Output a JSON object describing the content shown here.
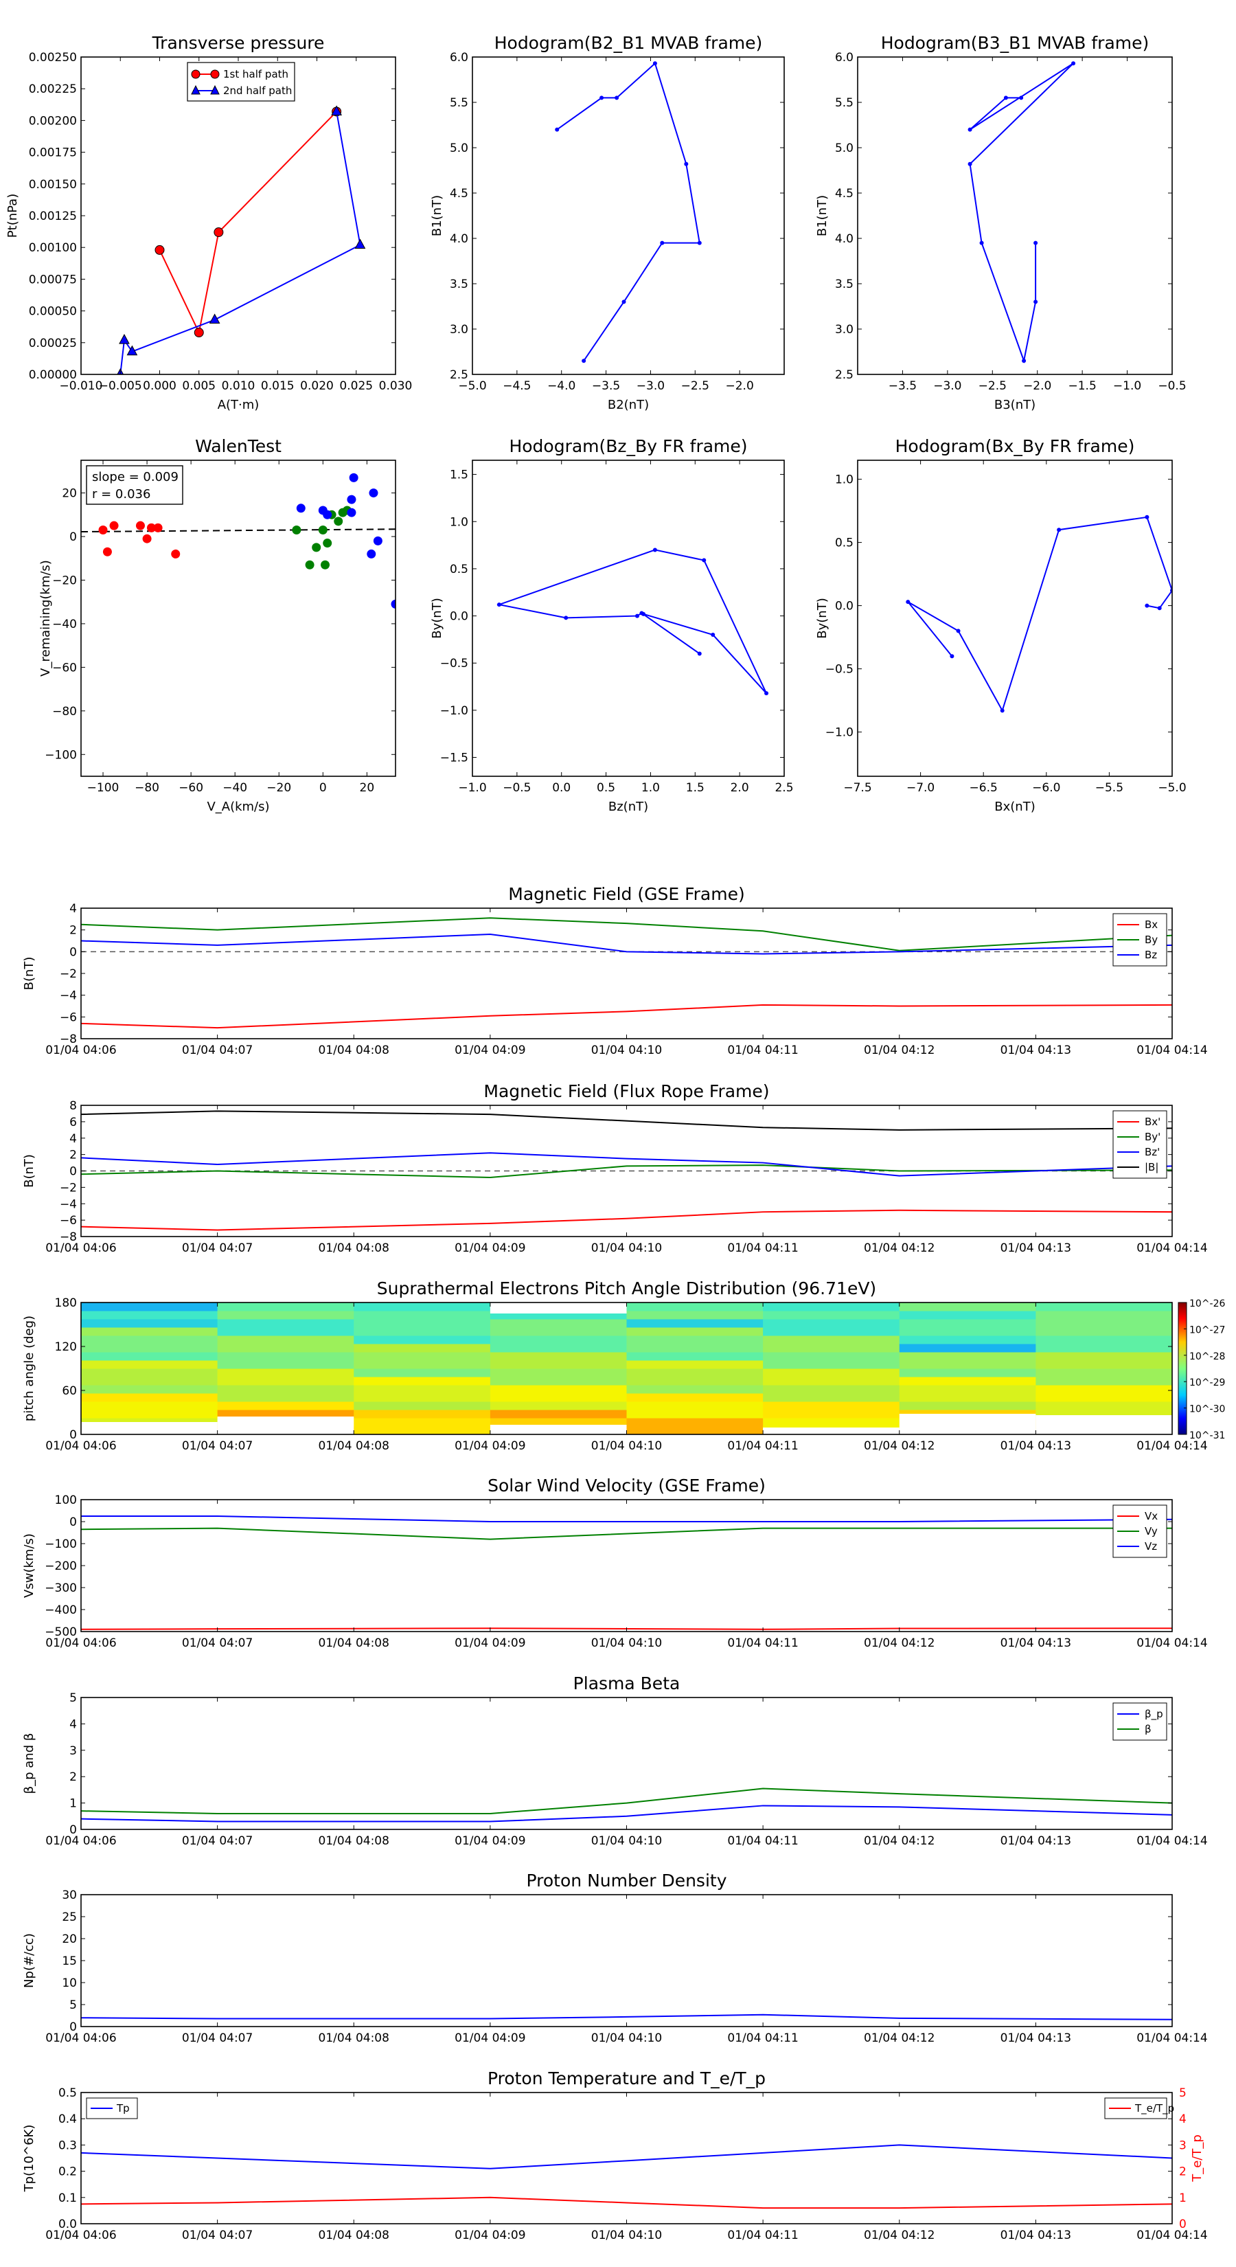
{
  "chart_data": [
    {
      "type": "line",
      "title": "Transverse pressure",
      "xlabel": "A(T·m)",
      "ylabel": "Pt(nPa)",
      "xlim": [
        -0.01,
        0.03
      ],
      "ylim": [
        0,
        0.0025
      ],
      "xticks": [
        "−0.010",
        "−0.005",
        "0.000",
        "0.005",
        "0.010",
        "0.015",
        "0.020",
        "0.025",
        "0.030"
      ],
      "yticks": [
        "0.00000",
        "0.00025",
        "0.00050",
        "0.00075",
        "0.00100",
        "0.00125",
        "0.00150",
        "0.00175",
        "0.00200",
        "0.00225",
        "0.00250"
      ],
      "legend": "top-center",
      "series": [
        {
          "name": "1st half path",
          "color": "#ff0000",
          "marker": "circle",
          "x": [
            0.0,
            0.005,
            0.0075,
            0.0225
          ],
          "y": [
            0.00098,
            0.00033,
            0.00112,
            0.00207
          ]
        },
        {
          "name": "2nd half path",
          "color": "#0000ff",
          "marker": "triangle",
          "x": [
            0.0225,
            0.0255,
            0.007,
            -0.0035,
            -0.0045,
            -0.005
          ],
          "y": [
            0.00207,
            0.00102,
            0.00043,
            0.00018,
            0.00027,
            0.0
          ]
        }
      ]
    },
    {
      "type": "line",
      "title": "Hodogram(B2_B1 MVAB frame)",
      "xlabel": "B2(nT)",
      "ylabel": "B1(nT)",
      "xlim": [
        -5.0,
        -1.5
      ],
      "ylim": [
        2.5,
        6.0
      ],
      "xticks": [
        "−5.0",
        "−4.5",
        "−4.0",
        "−3.5",
        "−3.0",
        "−2.5",
        "−2.0"
      ],
      "yticks": [
        "2.5",
        "3.0",
        "3.5",
        "4.0",
        "4.5",
        "5.0",
        "5.5",
        "6.0"
      ],
      "series": [
        {
          "color": "#0000ff",
          "x": [
            -4.05,
            -3.55,
            -3.38,
            -2.95,
            -2.6,
            -2.45,
            -2.87,
            -3.3,
            -3.75
          ],
          "y": [
            5.2,
            5.55,
            5.55,
            5.93,
            4.82,
            3.95,
            3.95,
            3.3,
            2.65
          ]
        }
      ]
    },
    {
      "type": "line",
      "title": "Hodogram(B3_B1 MVAB frame)",
      "xlabel": "B3(nT)",
      "ylabel": "B1(nT)",
      "xlim": [
        -4.0,
        -0.5
      ],
      "ylim": [
        2.5,
        6.0
      ],
      "xticks": [
        "−3.5",
        "−3.0",
        "−2.5",
        "−2.0",
        "−1.5",
        "−1.0",
        "−0.5"
      ],
      "yticks": [
        "2.5",
        "3.0",
        "3.5",
        "4.0",
        "4.5",
        "5.0",
        "5.5",
        "6.0"
      ],
      "series": [
        {
          "color": "#0000ff",
          "x": [
            -2.18,
            -2.35,
            -2.75,
            -1.6,
            -2.75,
            -2.62,
            -2.15,
            -2.02,
            -2.02
          ],
          "y": [
            5.55,
            5.55,
            5.2,
            5.93,
            4.82,
            3.95,
            2.65,
            3.3,
            3.95
          ]
        }
      ]
    },
    {
      "type": "scatter",
      "title": "WalenTest",
      "xlabel": "V_A(km/s)",
      "ylabel": "V_remaining(km/s)",
      "xlim": [
        -110,
        33
      ],
      "ylim": [
        -110,
        35
      ],
      "xticks": [
        "−100",
        "−80",
        "−60",
        "−40",
        "−20",
        "0",
        "20"
      ],
      "yticks": [
        "−100",
        "−80",
        "−60",
        "−40",
        "−20",
        "0",
        "20"
      ],
      "annotations": [
        "slope = 0.009",
        "r = 0.036"
      ],
      "fit_line": {
        "x": [
          -110,
          33
        ],
        "y": [
          2.2,
          3.4
        ]
      },
      "series": [
        {
          "color": "#ff0000",
          "x": [
            -100,
            -98,
            -95,
            -83,
            -80,
            -78,
            -75,
            -67
          ],
          "y": [
            3,
            -7,
            5,
            5,
            -1,
            4,
            4,
            -8
          ]
        },
        {
          "color": "#008000",
          "x": [
            -12,
            -6,
            -3,
            0,
            1,
            2,
            4,
            7,
            9,
            11
          ],
          "y": [
            3,
            -13,
            -5,
            3,
            -13,
            -3,
            10,
            7,
            11,
            12
          ]
        },
        {
          "color": "#0000ff",
          "x": [
            -10,
            0,
            2,
            13,
            13,
            14,
            22,
            23,
            25,
            33
          ],
          "y": [
            13,
            12,
            10,
            11,
            17,
            27,
            -8,
            20,
            -2,
            -31
          ]
        }
      ]
    },
    {
      "type": "line",
      "title": "Hodogram(Bz_By FR frame)",
      "xlabel": "Bz(nT)",
      "ylabel": "By(nT)",
      "xlim": [
        -1.0,
        2.5
      ],
      "ylim": [
        -1.7,
        1.65
      ],
      "xticks": [
        "−1.0",
        "−0.5",
        "0.0",
        "0.5",
        "1.0",
        "1.5",
        "2.0",
        "2.5"
      ],
      "yticks": [
        "−1.5",
        "−1.0",
        "−0.5",
        "0.0",
        "0.5",
        "1.0",
        "1.5"
      ],
      "series": [
        {
          "color": "#0000ff",
          "x": [
            1.55,
            0.9,
            0.85,
            0.05,
            -0.7,
            1.05,
            1.6,
            2.3,
            1.7,
            0.92
          ],
          "y": [
            -0.4,
            0.03,
            0.0,
            -0.02,
            0.12,
            0.7,
            0.59,
            -0.82,
            -0.2,
            0.02
          ]
        }
      ]
    },
    {
      "type": "line",
      "title": "Hodogram(Bx_By FR frame)",
      "xlabel": "Bx(nT)",
      "ylabel": "By(nT)",
      "xlim": [
        -7.5,
        -5.0
      ],
      "ylim": [
        -1.35,
        1.15
      ],
      "xticks": [
        "−7.5",
        "−7.0",
        "−6.5",
        "−6.0",
        "−5.5",
        "−5.0"
      ],
      "yticks": [
        "−1.0",
        "−0.5",
        "0.0",
        "0.5",
        "1.0"
      ],
      "series": [
        {
          "color": "#0000ff",
          "x": [
            -6.75,
            -7.1,
            -6.7,
            -6.35,
            -5.9,
            -5.2,
            -5.0,
            -5.1,
            -5.2
          ],
          "y": [
            -0.4,
            0.03,
            -0.2,
            -0.83,
            0.6,
            0.7,
            0.12,
            -0.02,
            0.0
          ]
        }
      ]
    },
    {
      "type": "line",
      "title": "Magnetic Field (GSE Frame)",
      "ylabel": "B(nT)",
      "ylim": [
        -8,
        4
      ],
      "yticks": [
        "−8",
        "−6",
        "−4",
        "−2",
        "0",
        "2",
        "4"
      ],
      "categories": [
        "01/04 04:06",
        "01/04 04:07",
        "01/04 04:08",
        "01/04 04:09",
        "01/04 04:10",
        "01/04 04:11",
        "01/04 04:12",
        "01/04 04:13",
        "01/04 04:14"
      ],
      "legend": "top-right",
      "dashed_zero": true,
      "series": [
        {
          "name": "Bx",
          "color": "#ff0000",
          "x": [
            0,
            1,
            3,
            4,
            5,
            6,
            8
          ],
          "values": [
            -6.6,
            -7.0,
            -5.9,
            -5.5,
            -4.9,
            -5.0,
            -4.9
          ]
        },
        {
          "name": "By",
          "color": "#008000",
          "x": [
            0,
            1,
            3,
            4,
            5,
            6,
            8
          ],
          "values": [
            2.5,
            2.0,
            3.1,
            2.6,
            1.9,
            0.1,
            1.5
          ]
        },
        {
          "name": "Bz",
          "color": "#0000ff",
          "x": [
            0,
            1,
            3,
            4,
            5,
            6,
            8
          ],
          "values": [
            1.0,
            0.6,
            1.6,
            0.0,
            -0.2,
            0.0,
            0.6
          ]
        }
      ]
    },
    {
      "type": "line",
      "title": "Magnetic Field (Flux Rope Frame)",
      "ylabel": "B(nT)",
      "ylim": [
        -8,
        8
      ],
      "yticks": [
        "−8",
        "−6",
        "−4",
        "−2",
        "0",
        "2",
        "4",
        "6",
        "8"
      ],
      "categories": [
        "01/04 04:06",
        "01/04 04:07",
        "01/04 04:08",
        "01/04 04:09",
        "01/04 04:10",
        "01/04 04:11",
        "01/04 04:12",
        "01/04 04:13",
        "01/04 04:14"
      ],
      "legend": "top-right",
      "dashed_zero": true,
      "series": [
        {
          "name": "Bx'",
          "color": "#ff0000",
          "x": [
            0,
            1,
            3,
            4,
            5,
            6,
            8
          ],
          "values": [
            -6.8,
            -7.2,
            -6.4,
            -5.8,
            -5.0,
            -4.8,
            -5.0
          ]
        },
        {
          "name": "By'",
          "color": "#008000",
          "x": [
            0,
            1,
            3,
            4,
            5,
            6,
            8
          ],
          "values": [
            -0.4,
            0.0,
            -0.8,
            0.6,
            0.7,
            0.0,
            0.1
          ]
        },
        {
          "name": "Bz'",
          "color": "#0000ff",
          "x": [
            0,
            1,
            3,
            4,
            5,
            6,
            8
          ],
          "values": [
            1.6,
            0.8,
            2.2,
            1.5,
            1.0,
            -0.6,
            0.6
          ]
        },
        {
          "name": "|B|",
          "color": "#000000",
          "x": [
            0,
            1,
            3,
            4,
            5,
            6,
            8
          ],
          "values": [
            6.9,
            7.3,
            6.9,
            6.1,
            5.3,
            5.0,
            5.2
          ]
        }
      ]
    },
    {
      "type": "heatmap",
      "title": "Suprathermal Electrons Pitch Angle Distribution (96.71eV)",
      "ylabel": "pitch angle (deg)",
      "ylim": [
        0,
        180
      ],
      "yticks": [
        "0",
        "60",
        "120",
        "180"
      ],
      "categories": [
        "01/04 04:06",
        "01/04 04:07",
        "01/04 04:08",
        "01/04 04:09",
        "01/04 04:10",
        "01/04 04:11",
        "01/04 04:12",
        "01/04 04:13",
        "01/04 04:14"
      ],
      "colorbar_ticks": [
        "10^-26",
        "10^-27",
        "10^-28",
        "10^-29",
        "10^-30",
        "10^-31"
      ],
      "columns": 8,
      "bins": 16
    },
    {
      "type": "line",
      "title": "Solar Wind Velocity (GSE Frame)",
      "ylabel": "Vsw(km/s)",
      "ylim": [
        -500,
        100
      ],
      "yticks": [
        "−500",
        "−400",
        "−300",
        "−200",
        "−100",
        "0",
        "100"
      ],
      "categories": [
        "01/04 04:06",
        "01/04 04:07",
        "01/04 04:08",
        "01/04 04:09",
        "01/04 04:10",
        "01/04 04:11",
        "01/04 04:12",
        "01/04 04:13",
        "01/04 04:14"
      ],
      "legend": "top-right",
      "series": [
        {
          "name": "Vx",
          "color": "#ff0000",
          "x": [
            0,
            1,
            3,
            5,
            6,
            8
          ],
          "values": [
            -490,
            -488,
            -485,
            -490,
            -486,
            -485
          ]
        },
        {
          "name": "Vy",
          "color": "#008000",
          "x": [
            0,
            1,
            3,
            5,
            6,
            8
          ],
          "values": [
            -35,
            -30,
            -80,
            -30,
            -30,
            -30
          ]
        },
        {
          "name": "Vz",
          "color": "#0000ff",
          "x": [
            0,
            1,
            3,
            5,
            6,
            8
          ],
          "values": [
            25,
            25,
            0,
            0,
            0,
            10
          ]
        }
      ]
    },
    {
      "type": "line",
      "title": "Plasma Beta",
      "ylabel": "β_p and β",
      "ylim": [
        0,
        5
      ],
      "yticks": [
        "0",
        "1",
        "2",
        "3",
        "4",
        "5"
      ],
      "categories": [
        "01/04 04:06",
        "01/04 04:07",
        "01/04 04:08",
        "01/04 04:09",
        "01/04 04:10",
        "01/04 04:11",
        "01/04 04:12",
        "01/04 04:13",
        "01/04 04:14"
      ],
      "legend": "top-right",
      "series": [
        {
          "name": "β_p",
          "color": "#0000ff",
          "x": [
            0,
            1,
            3,
            4,
            5,
            6,
            8
          ],
          "values": [
            0.4,
            0.3,
            0.3,
            0.5,
            0.9,
            0.85,
            0.55
          ]
        },
        {
          "name": "β",
          "color": "#008000",
          "x": [
            0,
            1,
            3,
            4,
            5,
            6,
            8
          ],
          "values": [
            0.7,
            0.6,
            0.6,
            1.0,
            1.55,
            1.35,
            1.0
          ]
        }
      ]
    },
    {
      "type": "line",
      "title": "Proton Number Density",
      "ylabel": "Np(#/cc)",
      "ylim": [
        0,
        30
      ],
      "yticks": [
        "0",
        "5",
        "10",
        "15",
        "20",
        "25",
        "30"
      ],
      "categories": [
        "01/04 04:06",
        "01/04 04:07",
        "01/04 04:08",
        "01/04 04:09",
        "01/04 04:10",
        "01/04 04:11",
        "01/04 04:12",
        "01/04 04:13",
        "01/04 04:14"
      ],
      "series": [
        {
          "color": "#0000ff",
          "x": [
            0,
            1,
            3,
            4,
            5,
            6,
            8
          ],
          "values": [
            2.0,
            1.8,
            1.8,
            2.2,
            2.7,
            1.9,
            1.6
          ]
        }
      ]
    },
    {
      "type": "line",
      "title": "Proton Temperature and T_e/T_p",
      "ylabel": "Tp(10^6K)",
      "ylabel_right": "T_e/T_p",
      "ylim": [
        0,
        0.5
      ],
      "ylim_right": [
        0,
        5
      ],
      "yticks": [
        "0.0",
        "0.1",
        "0.2",
        "0.3",
        "0.4",
        "0.5"
      ],
      "yticks_right": [
        "0",
        "1",
        "2",
        "3",
        "4",
        "5"
      ],
      "categories": [
        "01/04 04:06",
        "01/04 04:07",
        "01/04 04:08",
        "01/04 04:09",
        "01/04 04:10",
        "01/04 04:11",
        "01/04 04:12",
        "01/04 04:13",
        "01/04 04:14"
      ],
      "series": [
        {
          "name": "Tp",
          "color": "#0000ff",
          "axis": "left",
          "x": [
            0,
            1,
            3,
            4,
            5,
            6,
            8
          ],
          "values": [
            0.27,
            0.25,
            0.21,
            0.24,
            0.27,
            0.3,
            0.25
          ]
        },
        {
          "name": "T_e/T_p",
          "color": "#ff0000",
          "axis": "right",
          "x": [
            0,
            1,
            3,
            4,
            5,
            6,
            8
          ],
          "values": [
            0.75,
            0.8,
            1.0,
            0.8,
            0.6,
            0.6,
            0.75
          ]
        }
      ]
    }
  ]
}
